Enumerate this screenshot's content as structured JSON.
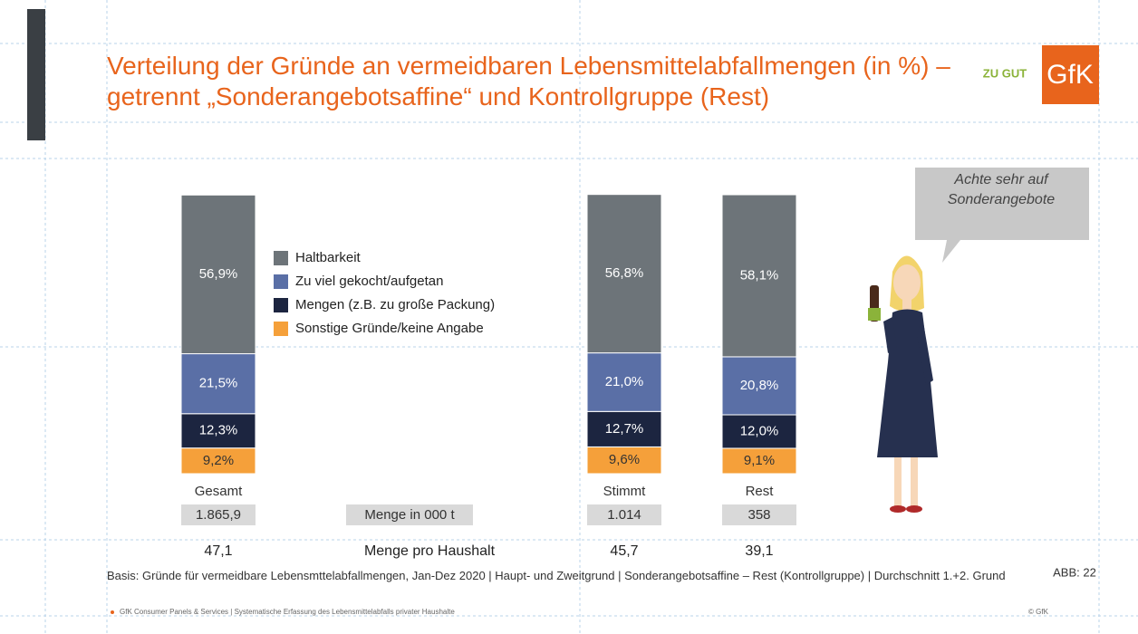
{
  "chart_data": {
    "type": "stacked-bar",
    "title": "Verteilung der Gründe an vermeidbaren Lebensmittelabfallmengen (in %) – getrennt „Sonderangebotsaffine“ und Kontrollgruppe (Rest)",
    "categories": [
      "Gesamt",
      "Stimmt",
      "Rest"
    ],
    "series": [
      {
        "name": "Haltbarkeit",
        "color": "#6d7479",
        "values": [
          56.9,
          56.8,
          58.1
        ],
        "value_labels": [
          "56,9%",
          "56,8%",
          "58,1%"
        ]
      },
      {
        "name": "Zu viel gekocht/aufgetan",
        "color": "#5a6fa6",
        "values": [
          21.5,
          21.0,
          20.8
        ],
        "value_labels": [
          "21,5%",
          "21,0%",
          "20,8%"
        ]
      },
      {
        "name": "Mengen (z.B. zu große Packung)",
        "color": "#1c2540",
        "values": [
          12.3,
          12.7,
          12.0
        ],
        "value_labels": [
          "12,3%",
          "12,7%",
          "12,0%"
        ]
      },
      {
        "name": "Sonstige Gründe/keine Angabe",
        "color": "#f5a03a",
        "values": [
          9.2,
          9.6,
          9.1
        ],
        "value_labels": [
          "9,2%",
          "9,6%",
          "9,1%"
        ]
      }
    ]
  },
  "amounts": {
    "label": "Menge in 000 t",
    "values": [
      "1.865,9",
      "1.014",
      "358"
    ]
  },
  "per_household": {
    "label": "Menge pro Haushalt",
    "values": [
      "47,1",
      "45,7",
      "39,1"
    ]
  },
  "callout": "Achte sehr auf Sonderangebote",
  "logos": [
    "ZU GUT",
    "GfK"
  ],
  "footnote": "Basis: Gründe für vermeidbare Lebensmttelabfallmengen, Jan-Dez 2020 | Haupt- und Zweitgrund | Sonderangebotsaffine – Rest (Kontrollgruppe) | Durchschnitt 1.+2. Grund",
  "slide_number": "ABB: 22",
  "footer": "GfK Consumer Panels & Services | Systematische Erfassung des Lebensmittelabfalls privater Haushalte",
  "copyright": "© GfK"
}
